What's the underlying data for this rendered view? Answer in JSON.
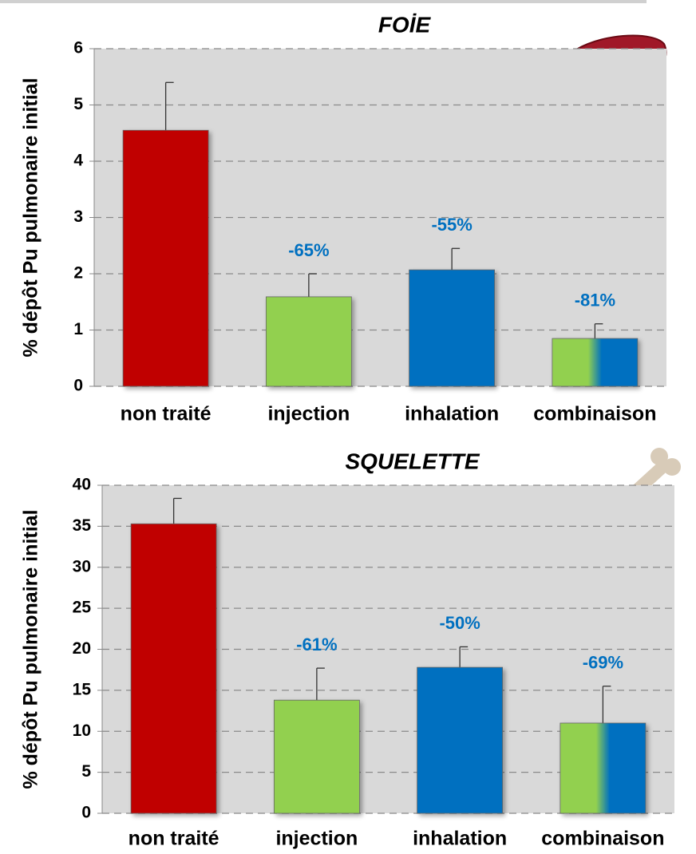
{
  "chart_data": [
    {
      "type": "bar",
      "title": "FOİE",
      "y_label": "% dépôt Pu pulmonaire initial",
      "categories": [
        "non traité",
        "injection",
        "inhalation",
        "combinaison"
      ],
      "values": [
        4.55,
        1.59,
        2.07,
        0.85
      ],
      "errors": [
        0.85,
        0.41,
        0.38,
        0.26
      ],
      "annotations": [
        null,
        "-65%",
        "-55%",
        "-81%"
      ],
      "colors": [
        "#c00000",
        "#92d050",
        "#0070c0",
        [
          "#92d050",
          "#0070c0"
        ]
      ],
      "ylim": [
        0,
        6
      ],
      "yticks": [
        0,
        1,
        2,
        3,
        4,
        5,
        6
      ],
      "grid": true
    },
    {
      "type": "bar",
      "title": "SQUELETTE",
      "y_label": "% dépôt Pu pulmonaire initial",
      "categories": [
        "non traité",
        "injection",
        "inhalation",
        "combinaison"
      ],
      "values": [
        35.3,
        13.8,
        17.8,
        11.0
      ],
      "errors": [
        3.1,
        3.9,
        2.5,
        4.5
      ],
      "annotations": [
        null,
        "-61%",
        "-50%",
        "-69%"
      ],
      "colors": [
        "#c00000",
        "#92d050",
        "#0070c0",
        [
          "#92d050",
          "#0070c0"
        ]
      ],
      "ylim": [
        0,
        40
      ],
      "yticks": [
        0,
        5,
        10,
        15,
        20,
        25,
        30,
        35,
        40
      ],
      "grid": true
    }
  ]
}
